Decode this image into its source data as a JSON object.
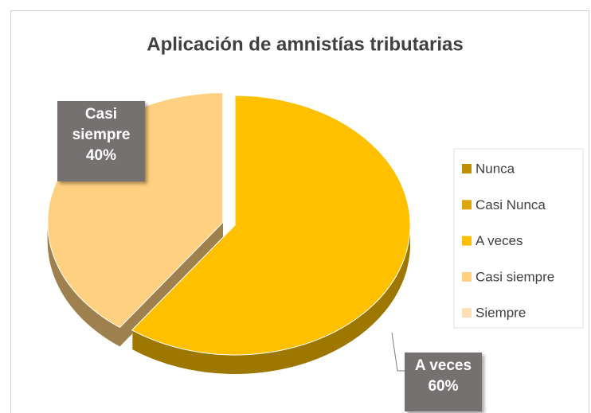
{
  "chart_data": {
    "type": "pie",
    "title": "Aplicación de amnistías tributarias",
    "categories": [
      "Nunca",
      "Casi Nunca",
      "A veces",
      "Casi siempre",
      "Siempre"
    ],
    "values": [
      0,
      0,
      60,
      40,
      0
    ],
    "value_labels": [
      null,
      null,
      "60%",
      "40%",
      null
    ],
    "colors": [
      "#bf8f00",
      "#dea70a",
      "#ffc000",
      "#ffd080",
      "#ffe0b5"
    ],
    "legend": "right"
  }
}
